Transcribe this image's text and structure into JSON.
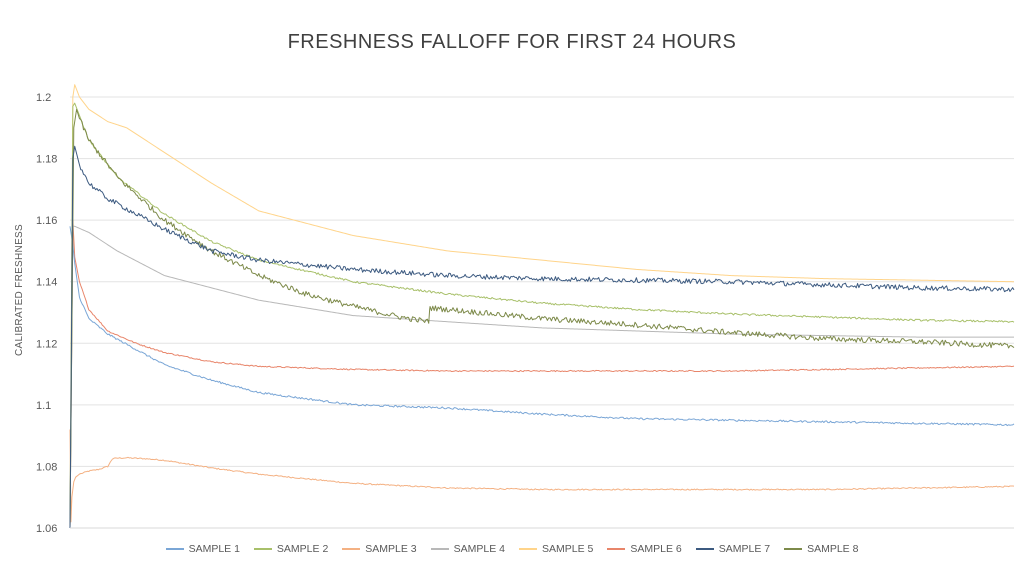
{
  "chart_data": {
    "type": "line",
    "title": "FRESHNESS FALLOFF FOR FIRST 24 HOURS",
    "xlabel": "",
    "ylabel": "CALIBRATED FRESHNESS",
    "ylim": [
      1.06,
      1.2
    ],
    "yticks": [
      1.06,
      1.08,
      1.1,
      1.12,
      1.14,
      1.16,
      1.18,
      1.2
    ],
    "ytick_labels": [
      "1.06",
      "1.08",
      "1.1",
      "1.12",
      "1.14",
      "1.16",
      "1.18",
      "1.2"
    ],
    "xlim": [
      0,
      1
    ],
    "grid": true,
    "legend_position": "bottom",
    "series": [
      {
        "name": "SAMPLE 1",
        "color": "#7aa6d6",
        "noise": 0.0003,
        "x": [
          0,
          0.003,
          0.005,
          0.01,
          0.02,
          0.04,
          0.07,
          0.1,
          0.15,
          0.2,
          0.3,
          0.4,
          0.5,
          0.6,
          0.7,
          0.8,
          0.9,
          1.0
        ],
        "values": [
          1.158,
          1.152,
          1.146,
          1.135,
          1.128,
          1.123,
          1.118,
          1.113,
          1.108,
          1.104,
          1.1,
          1.099,
          1.097,
          1.0955,
          1.095,
          1.0945,
          1.094,
          1.0935
        ]
      },
      {
        "name": "SAMPLE 2",
        "color": "#a8c06a",
        "noise": 0.0003,
        "x": [
          0,
          0.003,
          0.005,
          0.02,
          0.05,
          0.1,
          0.15,
          0.2,
          0.3,
          0.4,
          0.5,
          0.6,
          0.7,
          0.8,
          0.9,
          1.0
        ],
        "values": [
          1.06,
          1.197,
          1.198,
          1.186,
          1.174,
          1.162,
          1.153,
          1.147,
          1.14,
          1.136,
          1.133,
          1.131,
          1.1295,
          1.1285,
          1.1275,
          1.127
        ]
      },
      {
        "name": "SAMPLE 3",
        "color": "#f4b183",
        "noise": 0.0002,
        "x": [
          0,
          0.001,
          0.002,
          0.004,
          0.006,
          0.01,
          0.02,
          0.03,
          0.04,
          0.045,
          0.05,
          0.06,
          0.08,
          0.1,
          0.15,
          0.2,
          0.3,
          0.4,
          0.5,
          0.6,
          0.7,
          0.8,
          0.9,
          1.0
        ],
        "values": [
          1.092,
          1.062,
          1.07,
          1.075,
          1.0765,
          1.0775,
          1.0785,
          1.079,
          1.08,
          1.0825,
          1.0827,
          1.0828,
          1.0825,
          1.082,
          1.0795,
          1.0775,
          1.0745,
          1.073,
          1.0725,
          1.0725,
          1.0725,
          1.0725,
          1.073,
          1.0735
        ]
      },
      {
        "name": "SAMPLE 4",
        "color": "#b8b8b8",
        "noise": 0.0,
        "x": [
          0,
          0.003,
          0.005,
          0.02,
          0.05,
          0.1,
          0.2,
          0.3,
          0.4,
          0.5,
          0.6,
          0.7,
          0.8,
          0.9,
          1.0
        ],
        "values": [
          1.06,
          1.158,
          1.158,
          1.156,
          1.15,
          1.142,
          1.134,
          1.129,
          1.127,
          1.125,
          1.124,
          1.123,
          1.1225,
          1.122,
          1.122
        ]
      },
      {
        "name": "SAMPLE 5",
        "color": "#ffd48a",
        "noise": 0.0,
        "x": [
          0,
          0.003,
          0.005,
          0.01,
          0.02,
          0.04,
          0.06,
          0.1,
          0.15,
          0.2,
          0.3,
          0.4,
          0.5,
          0.6,
          0.7,
          0.8,
          0.9,
          1.0
        ],
        "values": [
          1.06,
          1.2,
          1.204,
          1.2,
          1.196,
          1.192,
          1.19,
          1.182,
          1.172,
          1.163,
          1.155,
          1.15,
          1.147,
          1.144,
          1.142,
          1.141,
          1.1405,
          1.14
        ]
      },
      {
        "name": "SAMPLE 6",
        "color": "#e8856a",
        "noise": 0.0002,
        "x": [
          0,
          0.003,
          0.005,
          0.01,
          0.02,
          0.04,
          0.07,
          0.1,
          0.15,
          0.2,
          0.3,
          0.4,
          0.5,
          0.6,
          0.7,
          0.8,
          0.9,
          1.0
        ],
        "values": [
          1.06,
          1.16,
          1.148,
          1.14,
          1.131,
          1.124,
          1.12,
          1.117,
          1.114,
          1.1125,
          1.1115,
          1.111,
          1.111,
          1.111,
          1.111,
          1.1115,
          1.112,
          1.1125
        ]
      },
      {
        "name": "SAMPLE 7",
        "color": "#3c5a80",
        "noise": 0.0008,
        "x": [
          0,
          0.003,
          0.005,
          0.01,
          0.02,
          0.04,
          0.07,
          0.1,
          0.15,
          0.2,
          0.3,
          0.4,
          0.5,
          0.6,
          0.7,
          0.8,
          0.9,
          1.0
        ],
        "values": [
          1.06,
          1.18,
          1.184,
          1.178,
          1.172,
          1.167,
          1.162,
          1.157,
          1.15,
          1.147,
          1.144,
          1.142,
          1.141,
          1.1405,
          1.14,
          1.139,
          1.138,
          1.1375
        ]
      },
      {
        "name": "SAMPLE 8",
        "color": "#7d8a4a",
        "noise": 0.0009,
        "x": [
          0,
          0.004,
          0.007,
          0.01,
          0.02,
          0.05,
          0.1,
          0.15,
          0.2,
          0.25,
          0.3,
          0.35,
          0.38,
          0.381,
          0.4,
          0.5,
          0.6,
          0.7,
          0.8,
          0.9,
          1.0
        ],
        "values": [
          1.06,
          1.19,
          1.196,
          1.193,
          1.186,
          1.174,
          1.16,
          1.15,
          1.142,
          1.136,
          1.132,
          1.1285,
          1.127,
          1.1315,
          1.131,
          1.128,
          1.126,
          1.1235,
          1.1215,
          1.1205,
          1.119
        ]
      }
    ]
  }
}
